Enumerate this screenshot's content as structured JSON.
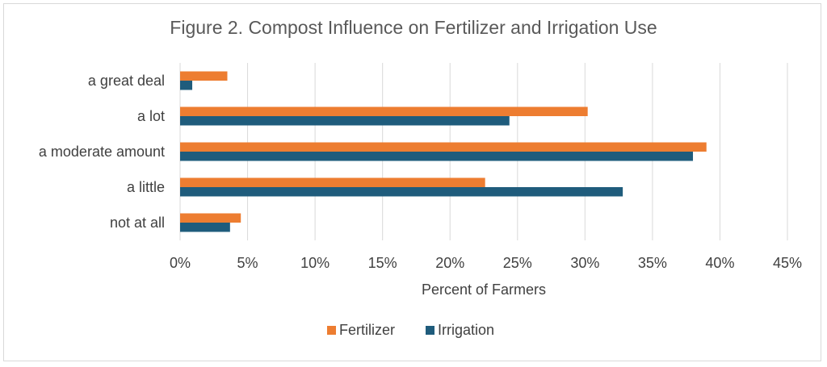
{
  "chart_data": {
    "type": "bar",
    "orientation": "horizontal",
    "title": "Figure 2. Compost Influence on Fertilizer and Irrigation Use",
    "xlabel": "Percent of Farmers",
    "ylabel": "",
    "categories": [
      "a great deal",
      "a lot",
      "a moderate amount",
      "a little",
      "not at all"
    ],
    "series": [
      {
        "name": "Fertilizer",
        "color": "#ed7d31",
        "values": [
          3.5,
          30.2,
          39.0,
          22.6,
          4.5
        ]
      },
      {
        "name": "Irrigation",
        "color": "#1f5c7c",
        "values": [
          0.9,
          24.4,
          38.0,
          32.8,
          3.7
        ]
      }
    ],
    "xlim": [
      0,
      45
    ],
    "xticks": [
      0,
      5,
      10,
      15,
      20,
      25,
      30,
      35,
      40,
      45
    ],
    "xtick_labels": [
      "0%",
      "5%",
      "10%",
      "15%",
      "20%",
      "25%",
      "30%",
      "35%",
      "40%",
      "45%"
    ],
    "grid": true,
    "legend": {
      "position": "bottom",
      "items": [
        "Fertilizer",
        "Irrigation"
      ]
    }
  }
}
